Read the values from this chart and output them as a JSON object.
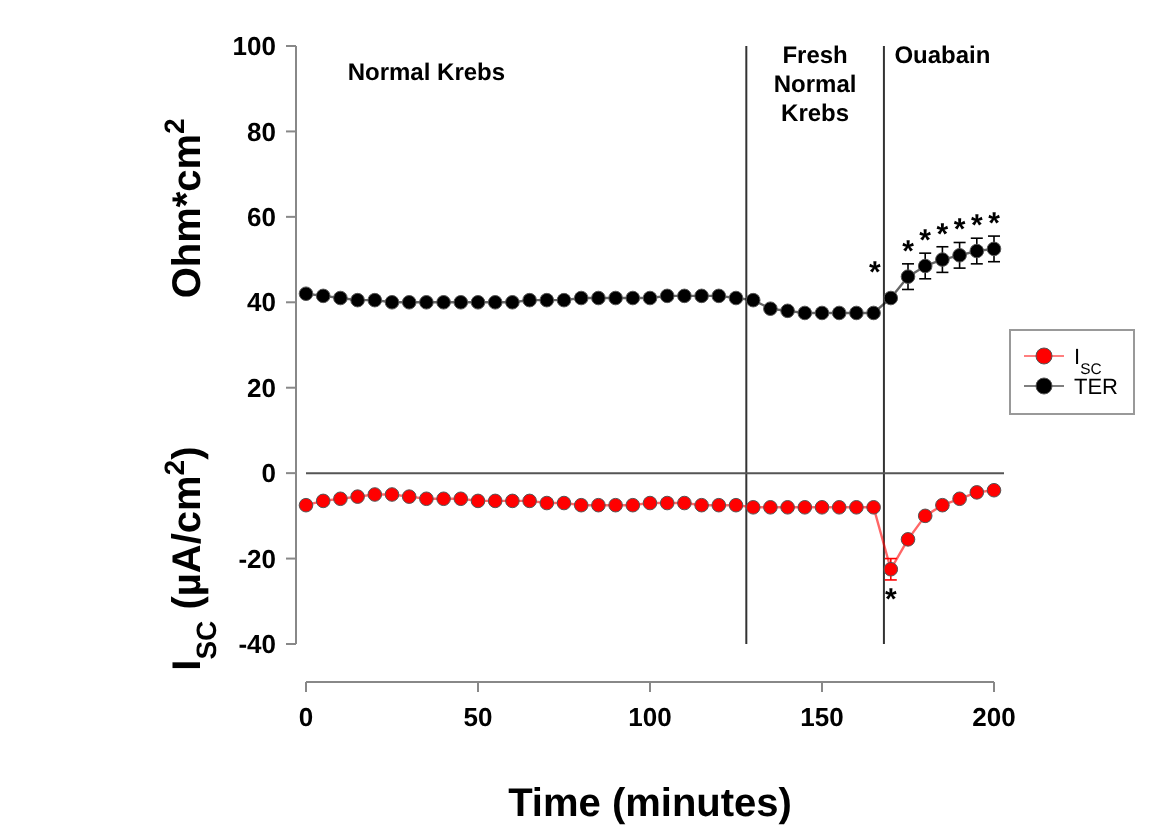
{
  "chart_data": {
    "type": "line",
    "xlabel": "Time (minutes)",
    "ylabel": "I$_{SC}$ (µA/cm$^{2}$)",
    "x": [
      0,
      5,
      10,
      15,
      20,
      25,
      30,
      35,
      40,
      45,
      50,
      55,
      60,
      65,
      70,
      75,
      80,
      85,
      90,
      95,
      100,
      105,
      110,
      115,
      120,
      125,
      130,
      135,
      140,
      145,
      150,
      155,
      160,
      165,
      170,
      175,
      180,
      185,
      190,
      195,
      200
    ],
    "xlim": [
      0,
      200
    ],
    "xticks": [
      0,
      50,
      100,
      150,
      200
    ],
    "ylim": [
      -40,
      100
    ],
    "yticks": [
      -40,
      -20,
      0,
      20,
      40,
      60,
      80,
      100
    ],
    "series": [
      {
        "name": "I$_{SC}$",
        "color": "#ff0000",
        "values": [
          -7.5,
          -6.5,
          -6,
          -5.5,
          -5,
          -5,
          -5.5,
          -6,
          -6,
          -6,
          -6.5,
          -6.5,
          -6.5,
          -6.5,
          -7,
          -7,
          -7.5,
          -7.5,
          -7.5,
          -7.5,
          -7,
          -7,
          -7,
          -7.5,
          -7.5,
          -7.5,
          -8,
          -8,
          -8,
          -8,
          -8,
          -8,
          -8,
          -8,
          -22.5,
          -15.5,
          -10,
          -7.5,
          -6,
          -4.5,
          -4
        ],
        "errors": [
          null,
          null,
          null,
          null,
          null,
          null,
          null,
          null,
          null,
          null,
          null,
          null,
          null,
          null,
          null,
          null,
          null,
          null,
          null,
          null,
          null,
          null,
          null,
          null,
          null,
          null,
          null,
          null,
          null,
          null,
          null,
          null,
          null,
          null,
          2.5,
          null,
          null,
          null,
          null,
          null,
          null
        ]
      },
      {
        "name": "TER",
        "color": "#000000",
        "values": [
          42,
          41.5,
          41,
          40.5,
          40.5,
          40,
          40,
          40,
          40,
          40,
          40,
          40,
          40,
          40.5,
          40.5,
          40.5,
          41,
          41,
          41,
          41,
          41,
          41.5,
          41.5,
          41.5,
          41.5,
          41,
          40.5,
          38.5,
          38,
          37.5,
          37.5,
          37.5,
          37.5,
          37.5,
          41,
          46,
          48.5,
          50,
          51,
          52,
          52.5
        ],
        "errors": [
          null,
          null,
          null,
          null,
          null,
          null,
          null,
          null,
          null,
          null,
          null,
          null,
          null,
          null,
          null,
          null,
          null,
          null,
          null,
          null,
          null,
          null,
          null,
          null,
          null,
          null,
          null,
          null,
          null,
          null,
          null,
          null,
          null,
          null,
          null,
          3,
          3,
          3,
          3,
          3,
          3
        ]
      }
    ],
    "ref_lines": [
      {
        "axis": "x",
        "value": 128
      },
      {
        "axis": "x",
        "value": 168
      },
      {
        "axis": "y",
        "value": 0
      }
    ],
    "annotations": [
      "Ohm*cm$^{2}$",
      "Normal Krebs",
      "Fresh\nNormal\nKrebs",
      "Ouabain",
      {
        "text": "*",
        "x": 170,
        "y": 41
      },
      {
        "text": "*",
        "x": 175,
        "y": 46
      },
      {
        "text": "*",
        "x": 180,
        "y": 48.5
      },
      {
        "text": "*",
        "x": 185,
        "y": 50
      },
      {
        "text": "*",
        "x": 190,
        "y": 51
      },
      {
        "text": "*",
        "x": 195,
        "y": 52
      },
      {
        "text": "*",
        "x": 200,
        "y": 52.5
      },
      {
        "text": "*",
        "x": 170,
        "y": -22.5
      }
    ],
    "legend": "right",
    "marker": "circle",
    "line_style": "solid",
    "grid": false
  }
}
